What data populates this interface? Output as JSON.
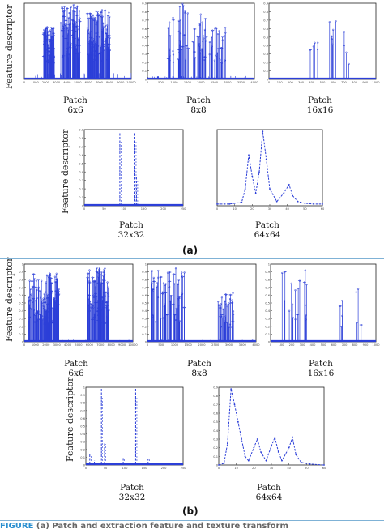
{
  "y_axis_label": "Feature descriptor",
  "group_labels": [
    "(a)",
    "(b)"
  ],
  "footer_fragment": {
    "highlight": "FIGURE",
    "rest": "(a) Patch and extraction feature and texture transform"
  },
  "colors": {
    "series": "#2c3fd8",
    "axis": "#222222",
    "tick": "#444444",
    "rule": "#7fb2d6"
  },
  "chart_data": [
    {
      "id": "a-6x6",
      "type": "line",
      "caption": "Patch",
      "patch": "6x6",
      "xlim": [
        0,
        10000
      ],
      "ylim": [
        0,
        0.9
      ],
      "xticks": [
        "0",
        "1000",
        "2000",
        "3000",
        "4000",
        "5000",
        "6000",
        "7000",
        "8000",
        "9000",
        "10000"
      ],
      "yticks": [],
      "noise": [
        0.08,
        0.02
      ],
      "zero_line": true,
      "clusters": [
        {
          "from": 1800,
          "to": 2800,
          "peak": 0.62,
          "density": 70
        },
        {
          "from": 3400,
          "to": 5200,
          "peak": 0.88,
          "density": 90
        },
        {
          "from": 5800,
          "to": 8000,
          "peak": 0.82,
          "density": 110
        }
      ]
    },
    {
      "id": "a-8x8",
      "type": "line",
      "caption": "Patch",
      "patch": "8x8",
      "xlim": [
        0,
        4000
      ],
      "ylim": [
        0,
        0.9
      ],
      "xticks": [
        "0",
        "500",
        "1000",
        "1500",
        "2000",
        "2500",
        "3000",
        "3500",
        "4000"
      ],
      "yticks": [
        "0",
        "0.1",
        "0.2",
        "0.3",
        "0.4",
        "0.5",
        "0.6",
        "0.7",
        "0.8",
        "0.9"
      ],
      "noise": [
        0.04,
        0.01
      ],
      "zero_line": true,
      "clusters": [
        {
          "from": 700,
          "to": 1000,
          "peak": 0.78,
          "density": 14
        },
        {
          "from": 1150,
          "to": 1550,
          "peak": 0.9,
          "density": 22
        },
        {
          "from": 1700,
          "to": 2250,
          "peak": 0.88,
          "density": 24
        },
        {
          "from": 2300,
          "to": 2950,
          "peak": 0.62,
          "density": 26
        }
      ]
    },
    {
      "id": "a-16x16",
      "type": "line",
      "caption": "Patch",
      "patch": "16x16",
      "xlim": [
        0,
        1000
      ],
      "ylim": [
        0,
        0.9
      ],
      "xticks": [
        "0",
        "100",
        "200",
        "300",
        "400",
        "500",
        "600",
        "700",
        "800",
        "900",
        "1000"
      ],
      "yticks": [
        "0",
        "0.1",
        "0.2",
        "0.3",
        "0.4",
        "0.5",
        "0.6",
        "0.7",
        "0.8",
        "0.9"
      ],
      "noise": [
        0.02,
        0.0
      ],
      "zero_line": true,
      "clusters": [
        {
          "from": 380,
          "to": 470,
          "peak": 0.9,
          "density": 5
        },
        {
          "from": 520,
          "to": 640,
          "peak": 0.75,
          "density": 6
        },
        {
          "from": 700,
          "to": 760,
          "peak": 0.6,
          "density": 4
        }
      ]
    },
    {
      "id": "a-32x32",
      "type": "line",
      "caption": "Patch",
      "patch": "32x32",
      "xlim": [
        0,
        250
      ],
      "ylim": [
        0,
        0.9
      ],
      "xticks": [
        "0",
        "50",
        "100",
        "150",
        "200",
        "250"
      ],
      "yticks": [
        "0",
        "0.1",
        "0.2",
        "0.3",
        "0.4",
        "0.5",
        "0.6",
        "0.7",
        "0.8",
        "0.9"
      ],
      "noise": [
        0.0,
        0.0
      ],
      "zero_line": true,
      "spikes": [
        [
          90,
          0.86
        ],
        [
          128,
          0.86
        ],
        [
          132,
          0.35
        ]
      ]
    },
    {
      "id": "a-64x64",
      "type": "line",
      "caption": "Patch",
      "patch": "64x64",
      "xlim": [
        0,
        60
      ],
      "ylim": [
        0,
        0.9
      ],
      "xticks": [
        "0",
        "10",
        "20",
        "30",
        "40",
        "50",
        "60"
      ],
      "yticks": [],
      "noise": [
        0.0,
        0.0
      ],
      "zero_line": false,
      "curve": [
        [
          0,
          0.02
        ],
        [
          4,
          0.02
        ],
        [
          7,
          0.02
        ],
        [
          10,
          0.03
        ],
        [
          14,
          0.04
        ],
        [
          16,
          0.2
        ],
        [
          18,
          0.6
        ],
        [
          20,
          0.35
        ],
        [
          22,
          0.15
        ],
        [
          24,
          0.4
        ],
        [
          26,
          0.88
        ],
        [
          28,
          0.55
        ],
        [
          30,
          0.2
        ],
        [
          34,
          0.05
        ],
        [
          38,
          0.15
        ],
        [
          41,
          0.25
        ],
        [
          43,
          0.12
        ],
        [
          46,
          0.05
        ],
        [
          50,
          0.03
        ],
        [
          55,
          0.02
        ],
        [
          60,
          0.02
        ]
      ]
    },
    {
      "id": "b-6x6",
      "type": "line",
      "caption": "Patch",
      "patch": "6x6",
      "xlim": [
        0,
        10000
      ],
      "ylim": [
        0,
        1
      ],
      "xticks": [
        "0",
        "1000",
        "2000",
        "3000",
        "4000",
        "5000",
        "6000",
        "7000",
        "8000",
        "9000",
        "10000"
      ],
      "yticks": [
        "0",
        "0.1",
        "0.2",
        "0.3",
        "0.4",
        "0.5",
        "0.6",
        "0.7",
        "0.8",
        "0.9",
        "1"
      ],
      "noise": [
        0.03,
        0.02
      ],
      "zero_line": true,
      "clusters": [
        {
          "from": 400,
          "to": 3200,
          "peak": 0.88,
          "density": 140
        },
        {
          "from": 5800,
          "to": 7800,
          "peak": 0.95,
          "density": 100
        }
      ]
    },
    {
      "id": "b-8x8",
      "type": "line",
      "caption": "Patch",
      "patch": "8x8",
      "xlim": [
        0,
        4000
      ],
      "ylim": [
        0,
        1
      ],
      "xticks": [
        "0",
        "500",
        "1000",
        "1500",
        "2000",
        "2500",
        "3000",
        "3500",
        "4000"
      ],
      "yticks": [
        "0",
        "0.1",
        "0.2",
        "0.3",
        "0.4",
        "0.5",
        "0.6",
        "0.7",
        "0.8",
        "0.9",
        "1"
      ],
      "noise": [
        0.03,
        0.01
      ],
      "zero_line": true,
      "clusters": [
        {
          "from": 150,
          "to": 1400,
          "peak": 0.95,
          "density": 55
        },
        {
          "from": 2600,
          "to": 3200,
          "peak": 0.7,
          "density": 30
        }
      ]
    },
    {
      "id": "b-16x16",
      "type": "line",
      "caption": "Patch",
      "patch": "16x16",
      "xlim": [
        0,
        1000
      ],
      "ylim": [
        0,
        1
      ],
      "xticks": [
        "0",
        "100",
        "200",
        "300",
        "400",
        "500",
        "600",
        "700",
        "800",
        "900",
        "1000"
      ],
      "yticks": [
        "0",
        "0.1",
        "0.2",
        "0.3",
        "0.4",
        "0.5",
        "0.6",
        "0.7",
        "0.8",
        "0.9",
        "1"
      ],
      "noise": [
        0.02,
        0.0
      ],
      "zero_line": true,
      "clusters": [
        {
          "from": 80,
          "to": 280,
          "peak": 0.95,
          "density": 12
        },
        {
          "from": 320,
          "to": 420,
          "peak": 0.98,
          "density": 6
        },
        {
          "from": 640,
          "to": 700,
          "peak": 0.55,
          "density": 4
        },
        {
          "from": 800,
          "to": 860,
          "peak": 0.8,
          "density": 4
        }
      ]
    },
    {
      "id": "b-32x32",
      "type": "line",
      "caption": "Patch",
      "patch": "32x32",
      "xlim": [
        0,
        250
      ],
      "ylim": [
        0,
        1
      ],
      "xticks": [
        "0",
        "50",
        "100",
        "150",
        "200",
        "250"
      ],
      "yticks": [
        "0",
        "0.1",
        "0.2",
        "0.3",
        "0.4",
        "0.5",
        "0.6",
        "0.7",
        "0.8",
        "0.9",
        "1"
      ],
      "noise": [
        0.02,
        0.0
      ],
      "zero_line": true,
      "spikes": [
        [
          10,
          0.15
        ],
        [
          22,
          0.06
        ],
        [
          40,
          0.98
        ],
        [
          48,
          0.3
        ],
        [
          96,
          0.1
        ],
        [
          128,
          0.98
        ],
        [
          160,
          0.08
        ]
      ]
    },
    {
      "id": "b-64x64",
      "type": "line",
      "caption": "Patch",
      "patch": "64x64",
      "xlim": [
        0,
        60
      ],
      "ylim": [
        0,
        0.9
      ],
      "xticks": [
        "0",
        "10",
        "20",
        "30",
        "40",
        "50",
        "60"
      ],
      "yticks": [
        "0",
        "0.1",
        "0.2",
        "0.3",
        "0.4",
        "0.5",
        "0.6",
        "0.7",
        "0.8",
        "0.9"
      ],
      "noise": [
        0.0,
        0.0
      ],
      "zero_line": false,
      "curve": [
        [
          0,
          0.0
        ],
        [
          3,
          0.02
        ],
        [
          5,
          0.25
        ],
        [
          7,
          0.88
        ],
        [
          9,
          0.7
        ],
        [
          11,
          0.5
        ],
        [
          13,
          0.3
        ],
        [
          15,
          0.1
        ],
        [
          17,
          0.05
        ],
        [
          20,
          0.2
        ],
        [
          22,
          0.3
        ],
        [
          24,
          0.15
        ],
        [
          27,
          0.05
        ],
        [
          30,
          0.22
        ],
        [
          32,
          0.32
        ],
        [
          34,
          0.15
        ],
        [
          36,
          0.05
        ],
        [
          40,
          0.2
        ],
        [
          42,
          0.32
        ],
        [
          44,
          0.12
        ],
        [
          47,
          0.03
        ],
        [
          52,
          0.01
        ],
        [
          60,
          0.0
        ]
      ]
    }
  ]
}
